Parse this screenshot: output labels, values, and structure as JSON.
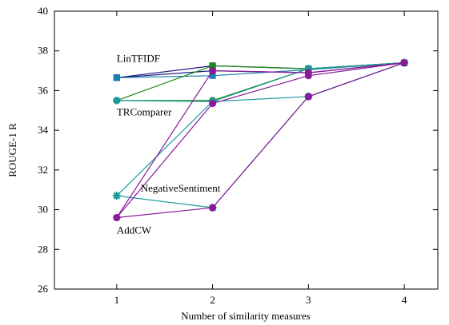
{
  "chart_data": {
    "type": "line",
    "title": "",
    "xlabel": "Number of similarity measures",
    "ylabel": "ROUGE-1 R",
    "xlim": [
      0.35,
      4.35
    ],
    "ylim": [
      26,
      40
    ],
    "xticks": [
      1,
      2,
      3,
      4
    ],
    "yticks": [
      26,
      28,
      30,
      32,
      34,
      36,
      38,
      40
    ],
    "grid": false,
    "legend": "none",
    "series": [
      {
        "color": "#1a1a80",
        "marker": "square",
        "values": [
          [
            1,
            36.65
          ],
          [
            2,
            37.25
          ],
          [
            3,
            37.1
          ],
          [
            4,
            37.4
          ]
        ]
      },
      {
        "color": "#1a1a80",
        "marker": "square",
        "values": [
          [
            1,
            36.65
          ],
          [
            2,
            37.0
          ],
          [
            3,
            36.9
          ],
          [
            4,
            37.4
          ]
        ]
      },
      {
        "color": "#1a7fb0",
        "marker": "square",
        "values": [
          [
            1,
            36.65
          ],
          [
            2,
            36.75
          ],
          [
            3,
            37.05
          ],
          [
            4,
            37.4
          ]
        ]
      },
      {
        "color": "#1a8a1a",
        "marker": "circle",
        "values": [
          [
            1,
            35.5
          ],
          [
            2,
            37.25
          ],
          [
            3,
            37.1
          ],
          [
            4,
            37.4
          ]
        ]
      },
      {
        "color": "#1a8a1a",
        "marker": "circle",
        "values": [
          [
            1,
            35.5
          ],
          [
            2,
            35.5
          ],
          [
            3,
            37.1
          ],
          [
            4,
            37.4
          ]
        ]
      },
      {
        "color": "#1a9a9a",
        "marker": "circle",
        "values": [
          [
            1,
            35.5
          ],
          [
            2,
            35.45
          ],
          [
            3,
            35.7
          ],
          [
            4,
            37.4
          ]
        ]
      },
      {
        "color": "#1a9a9a",
        "marker": "star",
        "values": [
          [
            1,
            30.7
          ],
          [
            2,
            35.45
          ],
          [
            3,
            37.1
          ],
          [
            4,
            37.4
          ]
        ]
      },
      {
        "color": "#1a9a9a",
        "marker": "star",
        "values": [
          [
            1,
            30.7
          ],
          [
            2,
            30.1
          ],
          [
            3,
            35.7
          ],
          [
            4,
            37.4
          ]
        ]
      },
      {
        "color": "#8a1a9a",
        "marker": "circle",
        "values": [
          [
            1,
            29.6
          ],
          [
            2,
            37.0
          ],
          [
            3,
            36.9
          ],
          [
            4,
            37.4
          ]
        ]
      },
      {
        "color": "#8a1a9a",
        "marker": "circle",
        "values": [
          [
            1,
            29.6
          ],
          [
            2,
            35.35
          ],
          [
            3,
            36.75
          ],
          [
            4,
            37.4
          ]
        ]
      },
      {
        "color": "#8a1a9a",
        "marker": "circle",
        "values": [
          [
            1,
            29.6
          ],
          [
            2,
            30.1
          ],
          [
            3,
            35.7
          ],
          [
            4,
            37.4
          ]
        ]
      }
    ],
    "annotations": [
      {
        "text": "LinTFIDF",
        "x": 1,
        "y": 37.45,
        "anchor": "start"
      },
      {
        "text": "TRComparer",
        "x": 1,
        "y": 34.75,
        "anchor": "start"
      },
      {
        "text": "NegativeSentiment",
        "x": 1.25,
        "y": 30.9,
        "anchor": "start"
      },
      {
        "text": "AddCW",
        "x": 1,
        "y": 28.8,
        "anchor": "start"
      }
    ]
  }
}
